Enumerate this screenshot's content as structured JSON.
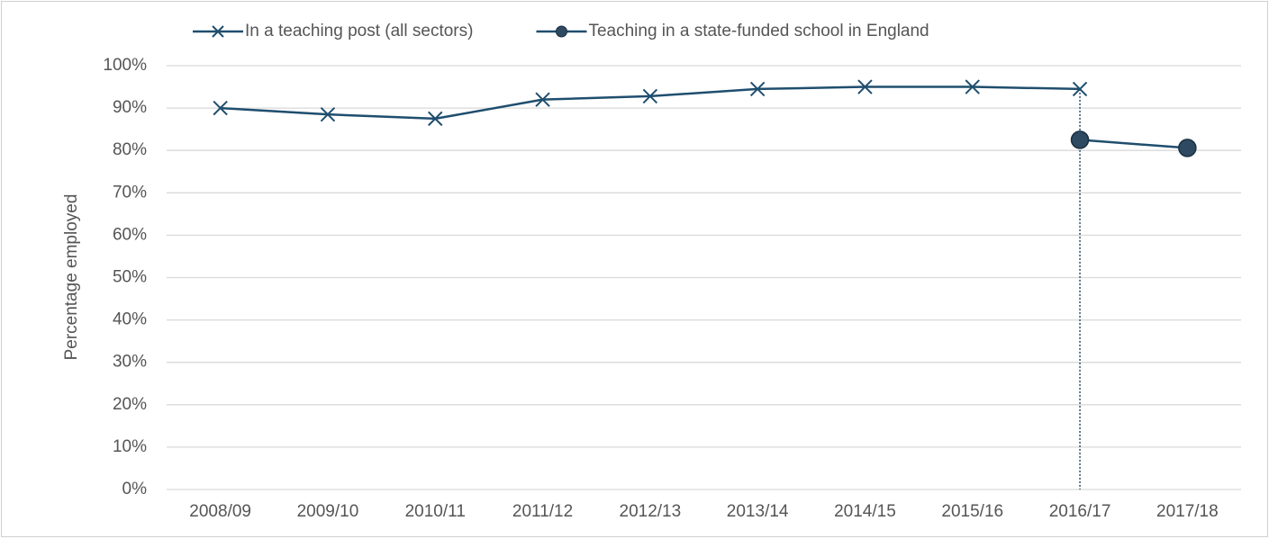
{
  "chart_data": {
    "type": "line",
    "y_label": "Percentage employed",
    "categories": [
      "2008/09",
      "2009/10",
      "2010/11",
      "2011/12",
      "2012/13",
      "2013/14",
      "2014/15",
      "2015/16",
      "2016/17",
      "2017/18"
    ],
    "series": [
      {
        "name": "In a teaching post (all sectors)",
        "color": "#1f4e6e",
        "marker": "x",
        "values": [
          90,
          88.5,
          87.5,
          92,
          92.8,
          94.5,
          95,
          95,
          94.5,
          null
        ]
      },
      {
        "name": "Teaching in a state-funded school in England",
        "color": "#1f4e6e",
        "marker": "o",
        "values": [
          null,
          null,
          null,
          null,
          null,
          null,
          null,
          null,
          82.5,
          80.6
        ]
      }
    ],
    "ylim": [
      0,
      100
    ],
    "yticks": [
      {
        "value": 0,
        "label": "0%"
      },
      {
        "value": 10,
        "label": "10%"
      },
      {
        "value": 20,
        "label": "20%"
      },
      {
        "value": 30,
        "label": "30%"
      },
      {
        "value": 40,
        "label": "40%"
      },
      {
        "value": 50,
        "label": "50%"
      },
      {
        "value": 60,
        "label": "60%"
      },
      {
        "value": 70,
        "label": "70%"
      },
      {
        "value": 80,
        "label": "80%"
      },
      {
        "value": 90,
        "label": "90%"
      },
      {
        "value": 100,
        "label": "100%"
      }
    ],
    "grid": true,
    "legend": "top"
  }
}
